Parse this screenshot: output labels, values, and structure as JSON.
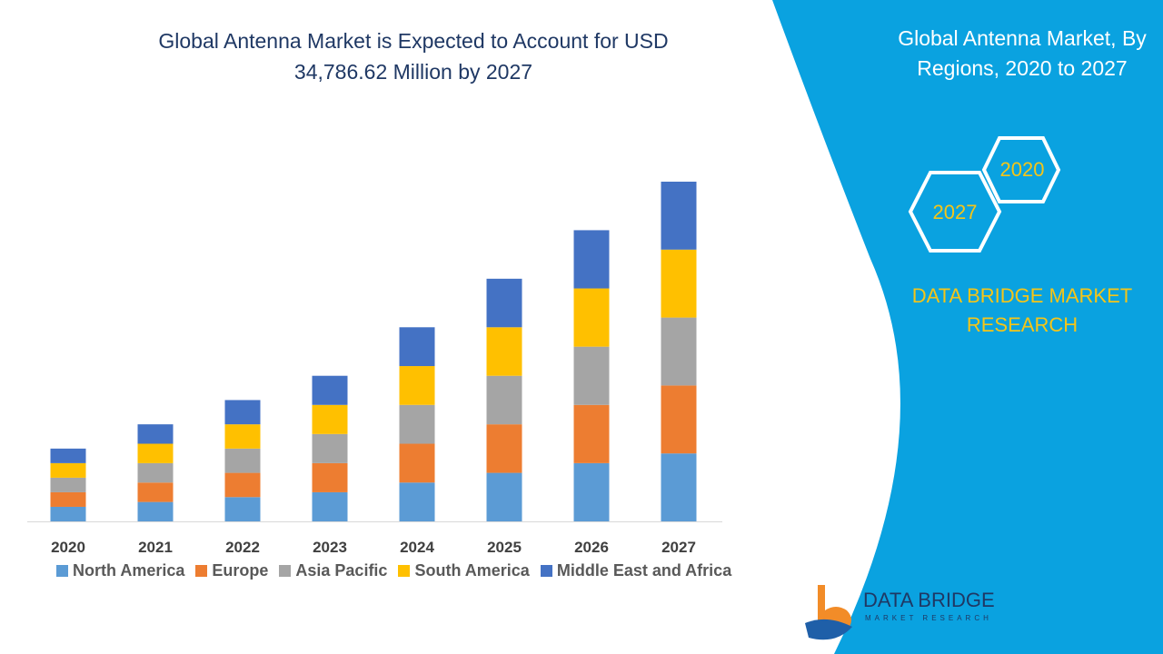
{
  "header": {
    "title": "Global Antenna Market is Expected to Account for USD 34,786.62 Million by 2027"
  },
  "right_panel": {
    "title": "Global Antenna Market, By Regions, 2020 to 2027",
    "hex_top": "2020",
    "hex_bottom": "2027",
    "brand_line1": "DATA BRIDGE MARKET",
    "brand_line2": "RESEARCH",
    "logo_text": "DATA BRIDGE",
    "logo_subtext": "MARKET RESEARCH"
  },
  "colors": {
    "panel": "#0aa2e0",
    "accent": "#f5c518"
  },
  "chart_data": {
    "type": "bar",
    "stacked": true,
    "title": "",
    "xlabel": "",
    "ylabel": "",
    "categories": [
      "2020",
      "2021",
      "2022",
      "2023",
      "2024",
      "2025",
      "2026",
      "2027"
    ],
    "ylim": [
      0,
      70
    ],
    "series": [
      {
        "name": "North America",
        "color": "#5b9bd5",
        "values": [
          3,
          4,
          5,
          6,
          8,
          10,
          12,
          14
        ]
      },
      {
        "name": "Europe",
        "color": "#ed7d31",
        "values": [
          3,
          4,
          5,
          6,
          8,
          10,
          12,
          14
        ]
      },
      {
        "name": "Asia Pacific",
        "color": "#a5a5a5",
        "values": [
          3,
          4,
          5,
          6,
          8,
          10,
          12,
          14
        ]
      },
      {
        "name": "South America",
        "color": "#ffc000",
        "values": [
          3,
          4,
          5,
          6,
          8,
          10,
          12,
          14
        ]
      },
      {
        "name": "Middle East and Africa",
        "color": "#4472c4",
        "values": [
          3,
          4,
          5,
          6,
          8,
          10,
          12,
          14
        ]
      }
    ],
    "grid": false,
    "legend_position": "bottom"
  }
}
